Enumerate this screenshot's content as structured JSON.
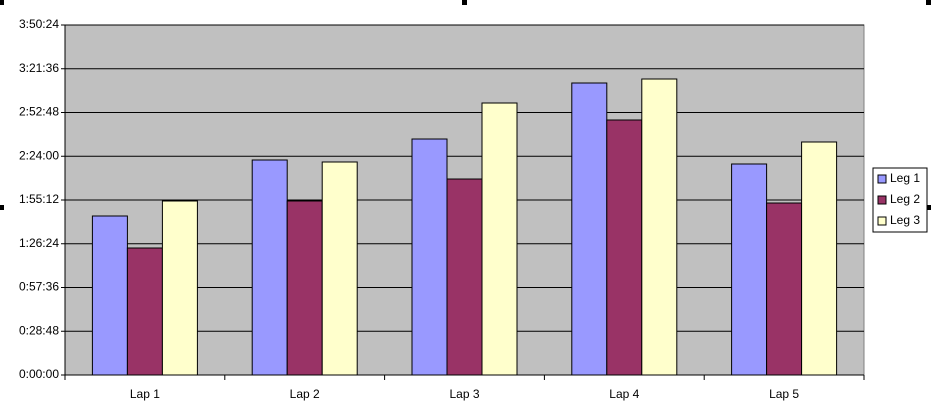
{
  "chart_data": {
    "type": "bar",
    "categories": [
      "Lap 1",
      "Lap 2",
      "Lap 3",
      "Lap 4",
      "Lap 5"
    ],
    "series": [
      {
        "name": "Leg 1",
        "color": "#9999ff",
        "values": [
          6280,
          8492,
          9321,
          11533,
          8334
        ]
      },
      {
        "name": "Leg 2",
        "color": "#993366",
        "values": [
          5016,
          6873,
          7741,
          10072,
          6793
        ]
      },
      {
        "name": "Leg 3",
        "color": "#ffffcc",
        "values": [
          6873,
          8413,
          10743,
          11691,
          9203
        ]
      }
    ],
    "ylim": [
      0,
      13824
    ],
    "yticks": [
      {
        "value": 0,
        "label": "0:00:00"
      },
      {
        "value": 1728,
        "label": "0:28:48"
      },
      {
        "value": 3456,
        "label": "0:57:36"
      },
      {
        "value": 5184,
        "label": "1:26:24"
      },
      {
        "value": 6912,
        "label": "1:55:12"
      },
      {
        "value": 8640,
        "label": "2:24:00"
      },
      {
        "value": 10368,
        "label": "2:52:48"
      },
      {
        "value": 12096,
        "label": "3:21:36"
      },
      {
        "value": 13824,
        "label": "3:50:24"
      }
    ],
    "grid": true,
    "plot_background": "#c0c0c0",
    "legend": "right"
  }
}
